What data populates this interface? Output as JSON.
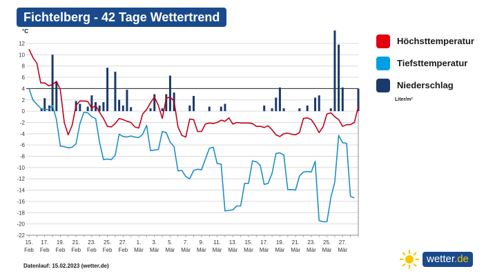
{
  "header": {
    "title": "Fichtelberg - 42 Tage Wettertrend"
  },
  "legend": {
    "items": [
      {
        "label": "Höchsttemperatur",
        "color": "#e3000f"
      },
      {
        "label": "Tiefsttemperatur",
        "color": "#009fe3"
      },
      {
        "label": "Niederschlag",
        "color": "#1a3a6b"
      }
    ],
    "unit_label": "Liter/m²"
  },
  "footer": {
    "text": "Datenlauf: 15.02.2023 (wetter.de)"
  },
  "logo": {
    "name": "wetter",
    "tld": ".de",
    "icon": "sun-icon"
  },
  "chart_data": {
    "type": "line",
    "title": "Fichtelberg - 42 Tage Wettertrend",
    "ylabel": "°C",
    "ylim": [
      -22,
      12
    ],
    "yticks": [
      12,
      10,
      8,
      6,
      4,
      2,
      0,
      -2,
      -4,
      -6,
      -8,
      -10,
      -12,
      -14,
      -16,
      -18,
      -20,
      -22
    ],
    "x_start_day": 15,
    "x_end_day": 57,
    "x_ticks": [
      {
        "day": 15,
        "label1": "15.",
        "label2": "Feb"
      },
      {
        "day": 17,
        "label1": "17.",
        "label2": "Feb"
      },
      {
        "day": 19,
        "label1": "19.",
        "label2": "Feb"
      },
      {
        "day": 21,
        "label1": "21.",
        "label2": "Feb"
      },
      {
        "day": 23,
        "label1": "23.",
        "label2": "Feb"
      },
      {
        "day": 25,
        "label1": "25.",
        "label2": "Feb"
      },
      {
        "day": 27,
        "label1": "27.",
        "label2": "Feb"
      },
      {
        "day": 29,
        "label1": "1.",
        "label2": "Mär"
      },
      {
        "day": 31,
        "label1": "3.",
        "label2": "Mär"
      },
      {
        "day": 33,
        "label1": "5.",
        "label2": "Mär"
      },
      {
        "day": 35,
        "label1": "7.",
        "label2": "Mär"
      },
      {
        "day": 37,
        "label1": "9.",
        "label2": "Mär"
      },
      {
        "day": 39,
        "label1": "11.",
        "label2": "Mär"
      },
      {
        "day": 41,
        "label1": "13.",
        "label2": "Mär"
      },
      {
        "day": 43,
        "label1": "15.",
        "label2": "Mär"
      },
      {
        "day": 45,
        "label1": "17.",
        "label2": "Mär"
      },
      {
        "day": 47,
        "label1": "19.",
        "label2": "Mär"
      },
      {
        "day": 49,
        "label1": "21.",
        "label2": "Mär"
      },
      {
        "day": 51,
        "label1": "23.",
        "label2": "Mär"
      },
      {
        "day": 53,
        "label1": "25.",
        "label2": "Mär"
      },
      {
        "day": 55,
        "label1": "27.",
        "label2": "Mär"
      }
    ],
    "reference_line": 4,
    "series": [
      {
        "name": "Höchsttemperatur",
        "color": "#c0001a",
        "points": [
          [
            15.0,
            11.0
          ],
          [
            15.5,
            9.5
          ],
          [
            16.0,
            8.5
          ],
          [
            16.5,
            5.0
          ],
          [
            17.0,
            5.0
          ],
          [
            17.5,
            4.5
          ],
          [
            18.0,
            4.7
          ],
          [
            18.5,
            5.3
          ],
          [
            19.0,
            3.8
          ],
          [
            19.5,
            -2.0
          ],
          [
            20.0,
            -4.2
          ],
          [
            20.5,
            -2.5
          ],
          [
            21.0,
            1.0
          ],
          [
            21.5,
            1.8
          ],
          [
            22.0,
            1.8
          ],
          [
            22.5,
            1.7
          ],
          [
            23.0,
            0.5
          ],
          [
            23.5,
            1.0
          ],
          [
            24.0,
            -0.2
          ],
          [
            24.5,
            -1.3
          ],
          [
            25.0,
            -2.7
          ],
          [
            25.5,
            -2.8
          ],
          [
            26.0,
            -2.2
          ],
          [
            26.5,
            -1.3
          ],
          [
            27.0,
            -1.5
          ],
          [
            27.5,
            -1.8
          ],
          [
            28.0,
            -2.0
          ],
          [
            28.5,
            -2.8
          ],
          [
            29.0,
            -3.0
          ],
          [
            29.5,
            -0.5
          ],
          [
            30.0,
            0.3
          ],
          [
            30.5,
            1.5
          ],
          [
            31.0,
            2.5
          ],
          [
            31.5,
            1.0
          ],
          [
            32.0,
            -1.3
          ],
          [
            32.5,
            2.3
          ],
          [
            33.0,
            2.5
          ],
          [
            33.5,
            1.8
          ],
          [
            34.0,
            -2.8
          ],
          [
            34.5,
            -4.3
          ],
          [
            35.0,
            -4.6
          ],
          [
            35.5,
            -1.4
          ],
          [
            36.0,
            -1.5
          ],
          [
            36.5,
            -3.6
          ],
          [
            37.0,
            -3.6
          ],
          [
            37.5,
            -2.3
          ],
          [
            38.0,
            -2.1
          ],
          [
            38.5,
            -2.2
          ],
          [
            39.0,
            -2.0
          ],
          [
            39.5,
            -1.6
          ],
          [
            40.0,
            -1.8
          ],
          [
            40.5,
            -1.2
          ],
          [
            41.0,
            -2.3
          ],
          [
            41.5,
            -2.0
          ],
          [
            42.0,
            -2.1
          ],
          [
            42.5,
            -2.1
          ],
          [
            43.0,
            -2.1
          ],
          [
            43.5,
            -2.2
          ],
          [
            44.0,
            -2.7
          ],
          [
            44.5,
            -2.7
          ],
          [
            45.0,
            -2.9
          ],
          [
            45.5,
            -2.6
          ],
          [
            46.0,
            -3.3
          ],
          [
            46.5,
            -4.2
          ],
          [
            47.0,
            -4.5
          ],
          [
            47.5,
            -4.0
          ],
          [
            48.0,
            -3.9
          ],
          [
            48.5,
            -4.1
          ],
          [
            49.0,
            -4.2
          ],
          [
            49.5,
            -3.8
          ],
          [
            50.0,
            -1.3
          ],
          [
            50.5,
            -1.2
          ],
          [
            51.0,
            -1.5
          ],
          [
            51.5,
            -2.5
          ],
          [
            52.0,
            -3.8
          ],
          [
            52.5,
            -2.8
          ],
          [
            53.0,
            -0.5
          ],
          [
            53.5,
            -0.3
          ],
          [
            54.0,
            -1.0
          ],
          [
            54.5,
            -1.5
          ],
          [
            55.0,
            -2.7
          ],
          [
            55.5,
            -2.4
          ],
          [
            56.0,
            -2.4
          ],
          [
            56.5,
            -2.0
          ],
          [
            57.0,
            0.8
          ]
        ]
      },
      {
        "name": "Tiefsttemperatur",
        "color": "#1b8fc6",
        "points": [
          [
            15.0,
            4.0
          ],
          [
            15.5,
            2.0
          ],
          [
            16.0,
            1.2
          ],
          [
            16.5,
            0.5
          ],
          [
            17.0,
            0.3
          ],
          [
            17.5,
            0.3
          ],
          [
            18.0,
            1.0
          ],
          [
            18.5,
            -1.5
          ],
          [
            19.0,
            -6.2
          ],
          [
            19.5,
            -6.3
          ],
          [
            20.0,
            -6.5
          ],
          [
            20.5,
            -6.4
          ],
          [
            21.0,
            -5.8
          ],
          [
            21.5,
            -2.2
          ],
          [
            22.0,
            -0.2
          ],
          [
            22.5,
            -0.3
          ],
          [
            23.0,
            -1.0
          ],
          [
            23.5,
            -1.3
          ],
          [
            24.0,
            -5.5
          ],
          [
            24.5,
            -8.6
          ],
          [
            25.0,
            -8.5
          ],
          [
            25.5,
            -8.6
          ],
          [
            26.0,
            -7.8
          ],
          [
            26.5,
            -4.1
          ],
          [
            27.0,
            -4.5
          ],
          [
            27.5,
            -4.6
          ],
          [
            28.0,
            -4.4
          ],
          [
            28.5,
            -4.6
          ],
          [
            29.0,
            -4.7
          ],
          [
            29.5,
            -4.1
          ],
          [
            30.0,
            -2.5
          ],
          [
            30.5,
            -7.0
          ],
          [
            31.0,
            -6.9
          ],
          [
            31.5,
            -6.8
          ],
          [
            32.0,
            -3.6
          ],
          [
            32.5,
            -3.8
          ],
          [
            33.0,
            -5.5
          ],
          [
            33.5,
            -6.3
          ],
          [
            34.0,
            -10.6
          ],
          [
            34.5,
            -10.5
          ],
          [
            35.0,
            -11.6
          ],
          [
            35.5,
            -12.0
          ],
          [
            36.0,
            -10.5
          ],
          [
            36.5,
            -10.3
          ],
          [
            37.0,
            -10.4
          ],
          [
            37.5,
            -8.5
          ],
          [
            38.0,
            -6.6
          ],
          [
            38.5,
            -6.4
          ],
          [
            39.0,
            -9.3
          ],
          [
            39.5,
            -9.4
          ],
          [
            40.0,
            -17.7
          ],
          [
            40.5,
            -17.6
          ],
          [
            41.0,
            -17.5
          ],
          [
            41.5,
            -16.8
          ],
          [
            42.0,
            -16.8
          ],
          [
            42.5,
            -12.8
          ],
          [
            43.0,
            -12.8
          ],
          [
            43.5,
            -8.8
          ],
          [
            44.0,
            -9.0
          ],
          [
            44.5,
            -9.6
          ],
          [
            45.0,
            -13.0
          ],
          [
            45.5,
            -12.8
          ],
          [
            46.0,
            -11.0
          ],
          [
            46.5,
            -7.5
          ],
          [
            47.0,
            -7.4
          ],
          [
            47.5,
            -7.8
          ],
          [
            48.0,
            -13.9
          ],
          [
            48.5,
            -13.9
          ],
          [
            49.0,
            -14.0
          ],
          [
            49.5,
            -11.5
          ],
          [
            50.0,
            -10.8
          ],
          [
            50.5,
            -10.7
          ],
          [
            51.0,
            -10.8
          ],
          [
            51.5,
            -8.9
          ],
          [
            52.0,
            -19.4
          ],
          [
            52.5,
            -19.6
          ],
          [
            53.0,
            -19.6
          ],
          [
            53.5,
            -15.3
          ],
          [
            54.0,
            -12.6
          ],
          [
            54.5,
            -4.3
          ],
          [
            55.0,
            -5.6
          ],
          [
            55.5,
            -5.7
          ],
          [
            56.0,
            -15.1
          ],
          [
            56.5,
            -15.4
          ]
        ]
      },
      {
        "name": "Niederschlag",
        "color": "#1a3a6b",
        "type": "bar",
        "unit": "Liter/m²",
        "bars": [
          [
            16.6,
            0.5
          ],
          [
            17.0,
            2.3
          ],
          [
            17.6,
            1.0
          ],
          [
            18.0,
            10.0
          ],
          [
            18.5,
            5.2
          ],
          [
            21.0,
            1.8
          ],
          [
            21.5,
            1.3
          ],
          [
            22.5,
            0.8
          ],
          [
            23.0,
            2.8
          ],
          [
            23.5,
            1.6
          ],
          [
            24.0,
            1.0
          ],
          [
            24.5,
            1.6
          ],
          [
            25.0,
            7.7
          ],
          [
            26.0,
            7.0
          ],
          [
            26.5,
            2.0
          ],
          [
            27.0,
            1.0
          ],
          [
            27.5,
            3.8
          ],
          [
            28.0,
            0.7
          ],
          [
            30.5,
            0.5
          ],
          [
            31.0,
            3.0
          ],
          [
            32.0,
            0.5
          ],
          [
            32.5,
            3.0
          ],
          [
            33.0,
            6.3
          ],
          [
            33.5,
            3.3
          ],
          [
            35.5,
            1.0
          ],
          [
            36.0,
            2.7
          ],
          [
            38.0,
            0.8
          ],
          [
            39.5,
            0.8
          ],
          [
            40.0,
            1.3
          ],
          [
            45.0,
            1.0
          ],
          [
            46.0,
            0.5
          ],
          [
            46.5,
            2.4
          ],
          [
            47.0,
            4.2
          ],
          [
            47.5,
            0.5
          ],
          [
            49.5,
            0.5
          ],
          [
            50.5,
            1.0
          ],
          [
            51.5,
            2.4
          ],
          [
            52.0,
            2.8
          ],
          [
            53.5,
            0.5
          ],
          [
            54.0,
            14.3
          ],
          [
            54.5,
            11.8
          ],
          [
            55.0,
            4.2
          ],
          [
            57.0,
            4.0
          ]
        ]
      }
    ]
  }
}
